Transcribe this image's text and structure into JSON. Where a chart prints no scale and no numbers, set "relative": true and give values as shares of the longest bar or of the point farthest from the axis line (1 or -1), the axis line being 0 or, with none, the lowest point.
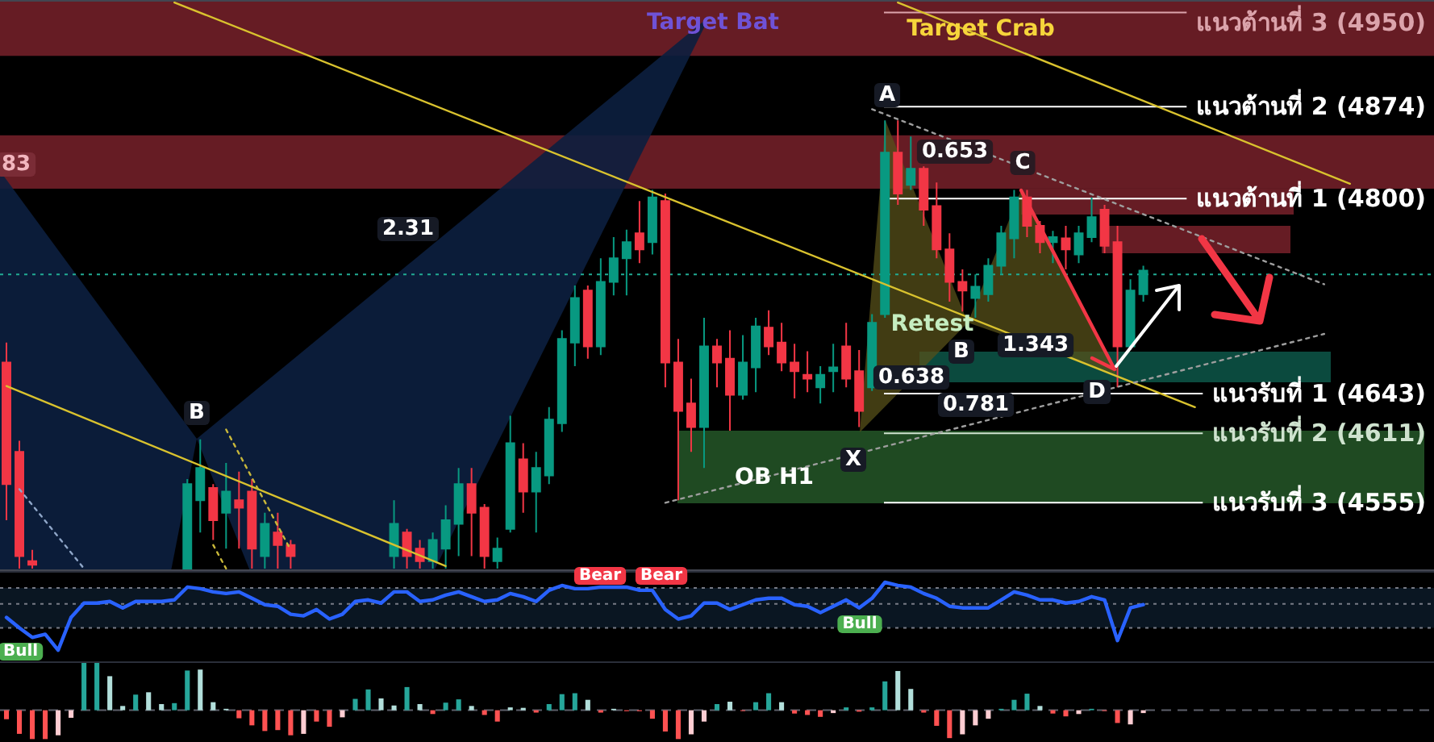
{
  "chart_data": [
    {
      "type": "candlestick",
      "categories": [
        null,
        null,
        null,
        null,
        null,
        null,
        null,
        null,
        null,
        null,
        null,
        null,
        null,
        null,
        null,
        null,
        null,
        null,
        null,
        null,
        null,
        null,
        null,
        null,
        null,
        null,
        null,
        null,
        null,
        null,
        null,
        null,
        null,
        null,
        null,
        null,
        null,
        null,
        null,
        null,
        null,
        null,
        null,
        null,
        null,
        null,
        null,
        null,
        null,
        null,
        null,
        null,
        null,
        null,
        null,
        null,
        null,
        null,
        null,
        null,
        null,
        null,
        null,
        null,
        null,
        null,
        null,
        null,
        null,
        null,
        null,
        null,
        null,
        null,
        null,
        null,
        null,
        null,
        null,
        null,
        null,
        null,
        null,
        null,
        null,
        null,
        null,
        null,
        null,
        null,
        null,
        null,
        null,
        null,
        null,
        null,
        null,
        null,
        null,
        null,
        null,
        null,
        null,
        null,
        null,
        null,
        null,
        null,
        null,
        null,
        null
      ],
      "ohlc": [
        [
          4668,
          4684,
          4541,
          4570
        ],
        [
          4596,
          4605,
          4502,
          4512
        ],
        [
          4508,
          4517,
          4502,
          4505
        ],
        null,
        null,
        null,
        null,
        null,
        null,
        null,
        null,
        null,
        null,
        null,
        [
          4502,
          4574,
          4502,
          4570
        ],
        [
          4557,
          4606,
          4531,
          4583
        ],
        [
          4567,
          4570,
          4525,
          4541
        ],
        [
          4547,
          4587,
          4518,
          4564
        ],
        [
          4557,
          4580,
          4518,
          4551
        ],
        [
          4564,
          4574,
          4502,
          4518
        ],
        [
          4512,
          4547,
          4502,
          4538
        ],
        [
          4531,
          4547,
          4502,
          4521
        ],
        [
          4521,
          4525,
          4502,
          4512
        ],
        null,
        null,
        null,
        null,
        null,
        null,
        null,
        [
          4512,
          4557,
          4502,
          4538
        ],
        [
          4531,
          4534,
          4502,
          4512
        ],
        [
          4518,
          4525,
          4502,
          4508
        ],
        [
          4508,
          4531,
          4502,
          4525
        ],
        [
          4518,
          4553,
          4502,
          4541
        ],
        [
          4538,
          4583,
          4512,
          4570
        ],
        [
          4570,
          4583,
          4512,
          4547
        ],
        [
          4551,
          4554,
          4502,
          4512
        ],
        [
          4508,
          4527,
          4502,
          4518
        ],
        [
          4534,
          4625,
          4531,
          4603
        ],
        [
          4590,
          4603,
          4547,
          4564
        ],
        [
          4564,
          4596,
          4531,
          4583
        ],
        [
          4577,
          4632,
          4570,
          4622
        ],
        [
          4619,
          4694,
          4612,
          4687
        ],
        [
          4684,
          4730,
          4665,
          4720
        ],
        [
          4726,
          4730,
          4671,
          4681
        ],
        [
          4681,
          4752,
          4674,
          4733
        ],
        [
          4733,
          4769,
          4722,
          4752
        ],
        [
          4752,
          4775,
          4722,
          4765
        ],
        [
          4772,
          4798,
          4748,
          4759
        ],
        [
          4765,
          4807,
          4755,
          4801
        ],
        [
          4798,
          4804,
          4648,
          4668
        ],
        [
          4668,
          4687,
          4557,
          4629
        ],
        [
          4635,
          4655,
          4596,
          4616
        ],
        [
          4616,
          4704,
          4583,
          4681
        ],
        [
          4681,
          4687,
          4648,
          4668
        ],
        [
          4671,
          4694,
          4613,
          4642
        ],
        [
          4642,
          4690,
          4638,
          4668
        ],
        [
          4664,
          4704,
          4644,
          4697
        ],
        [
          4696,
          4710,
          4674,
          4681
        ],
        [
          4684,
          4700,
          4661,
          4668
        ],
        [
          4668,
          4683,
          4639,
          4661
        ],
        [
          4658,
          4677,
          4644,
          4655
        ],
        [
          4648,
          4665,
          4635,
          4658
        ],
        [
          4661,
          4683,
          4644,
          4664
        ],
        [
          4681,
          4700,
          4648,
          4655
        ],
        [
          4661,
          4678,
          4616,
          4629
        ],
        [
          4648,
          4707,
          4645,
          4700
        ],
        [
          4707,
          4863,
          4704,
          4837
        ],
        [
          4837,
          4863,
          4795,
          4804
        ],
        [
          4811,
          4850,
          4807,
          4824
        ],
        [
          4824,
          4826,
          4778,
          4791
        ],
        [
          4794,
          4813,
          4752,
          4759
        ],
        [
          4759,
          4772,
          4717,
          4733
        ],
        [
          4733,
          4743,
          4709,
          4726
        ],
        [
          4720,
          4739,
          4704,
          4729
        ],
        [
          4723,
          4752,
          4717,
          4746
        ],
        [
          4746,
          4778,
          4739,
          4772
        ],
        [
          4768,
          4807,
          4752,
          4801
        ],
        [
          4801,
          4807,
          4769,
          4778
        ],
        [
          4778,
          4782,
          4756,
          4765
        ],
        [
          4765,
          4774,
          4748,
          4769
        ],
        [
          4768,
          4778,
          4743,
          4759
        ],
        [
          4755,
          4778,
          4748,
          4772
        ],
        [
          4769,
          4801,
          4765,
          4785
        ],
        [
          4791,
          4795,
          4756,
          4762
        ],
        [
          4765,
          4778,
          4648,
          4681
        ],
        [
          4681,
          4735,
          4678,
          4726
        ],
        [
          4723,
          4746,
          4717,
          4742
        ],
        null,
        null,
        null,
        null,
        null,
        null,
        null,
        null,
        null,
        null,
        null,
        null,
        null,
        null,
        null,
        null,
        null,
        null,
        null,
        null,
        null,
        null
      ],
      "colors": [
        "#f23645",
        "#f23645",
        "#f23645",
        null,
        null,
        null,
        null,
        null,
        null,
        null,
        null,
        null,
        null,
        null,
        "#089981",
        "#089981",
        "#f23645",
        "#089981",
        "#f23645",
        "#f23645",
        "#089981",
        "#f23645",
        "#f23645",
        null,
        null,
        null,
        null,
        null,
        null,
        null,
        "#089981",
        "#f23645",
        "#f23645",
        "#089981",
        "#089981",
        "#089981",
        "#f23645",
        "#f23645",
        "#089981",
        "#089981",
        "#f23645",
        "#089981",
        "#089981",
        "#089981",
        "#089981",
        "#f23645",
        "#089981",
        "#089981",
        "#089981",
        "#f23645",
        "#089981",
        "#f23645",
        "#f23645",
        "#f23645",
        "#089981",
        "#f23645",
        "#f23645",
        "#089981",
        "#089981",
        "#f23645",
        "#f23645",
        "#f23645",
        "#f23645",
        "#089981",
        "#089981",
        "#f23645",
        "#f23645",
        "#089981",
        "#089981",
        "#f23645",
        "#089981",
        "#f23645",
        "#f23645",
        "#f23645",
        "#f23645",
        "#089981",
        "#089981",
        "#089981",
        "#089981",
        "#f23645",
        "#f23645",
        "#089981",
        "#f23645",
        "#089981",
        "#089981",
        "#f23645",
        "#f23645",
        "#089981",
        "#089981",
        null,
        null,
        null,
        null,
        null,
        null,
        null,
        null,
        null,
        null,
        null,
        null,
        null,
        null,
        null,
        null,
        null,
        null,
        null,
        null,
        null,
        null
      ],
      "ylim": [
        4500,
        4960
      ],
      "series": [
        {
          "type": "line",
          "color": "#d9c22e",
          "values": [
            null,
            null,
            null,
            null,
            null,
            null,
            null,
            null,
            null,
            null,
            null,
            null,
            null,
            4958,
            null,
            null,
            null,
            null,
            null,
            null,
            null,
            null,
            null,
            null,
            null,
            null,
            null,
            null,
            null,
            null,
            null,
            null,
            null,
            null,
            null,
            null,
            null,
            null,
            null,
            null,
            null,
            null,
            null,
            null,
            null,
            null,
            null,
            null,
            null,
            null,
            null,
            null,
            null,
            null,
            null,
            null,
            null,
            null,
            null,
            null,
            null,
            null,
            null,
            null,
            null,
            null,
            null,
            null,
            null,
            null,
            null,
            null,
            null,
            null,
            null,
            null,
            null,
            null,
            null,
            null,
            null,
            null,
            null,
            null,
            null,
            null,
            null,
            null,
            null,
            null,
            null,
            null,
            4632,
            null,
            null,
            null,
            null,
            null,
            null,
            null,
            null,
            null,
            null,
            null,
            null,
            null,
            null,
            null,
            null,
            null,
            null
          ]
        },
        {
          "type": "line",
          "color": "#d9c22e",
          "values": [
            4649,
            null,
            null,
            null,
            null,
            null,
            null,
            null,
            null,
            null,
            null,
            null,
            null,
            null,
            null,
            null,
            null,
            null,
            null,
            null,
            null,
            null,
            null,
            null,
            null,
            null,
            null,
            null,
            null,
            null,
            null,
            null,
            null,
            null,
            4504,
            null,
            null,
            null,
            null,
            null,
            null,
            null,
            null,
            null,
            null,
            null,
            null,
            null,
            null,
            null,
            null,
            null,
            null,
            null,
            null,
            null,
            null,
            null,
            null,
            null,
            null,
            null,
            null,
            null,
            null,
            null,
            null,
            null,
            null,
            null,
            null,
            null,
            null,
            null,
            null,
            null,
            null,
            null,
            null,
            null,
            null,
            null,
            null,
            null,
            null,
            null,
            null,
            null,
            null,
            null,
            null,
            null,
            null,
            null,
            null,
            null,
            null,
            null,
            null,
            null,
            null,
            null,
            null,
            null,
            null,
            null,
            null,
            null,
            null,
            null,
            null
          ]
        },
        {
          "type": "line",
          "color": "#d9c22e",
          "values": [
            null,
            null,
            null,
            null,
            null,
            null,
            null,
            null,
            null,
            null,
            null,
            null,
            null,
            null,
            null,
            null,
            null,
            null,
            null,
            null,
            null,
            null,
            null,
            null,
            null,
            null,
            null,
            null,
            null,
            null,
            null,
            null,
            null,
            null,
            null,
            null,
            null,
            null,
            null,
            null,
            null,
            null,
            null,
            null,
            null,
            null,
            null,
            null,
            null,
            null,
            null,
            null,
            null,
            null,
            null,
            null,
            null,
            null,
            null,
            null,
            null,
            null,
            null,
            null,
            null,
            null,
            null,
            null,
            null,
            4958,
            null,
            null,
            null,
            null,
            null,
            null,
            null,
            null,
            null,
            null,
            null,
            null,
            null,
            null,
            null,
            null,
            null,
            null,
            null,
            null,
            null,
            null,
            null,
            null,
            null,
            null,
            null,
            null,
            null,
            null,
            null,
            null,
            null,
            null,
            4812,
            null,
            null,
            null,
            null,
            null,
            null
          ]
        },
        {
          "type": "line",
          "color": "#9e9e9e",
          "line_style": "dotted",
          "values": [
            null,
            null,
            null,
            null,
            null,
            null,
            null,
            null,
            null,
            null,
            null,
            null,
            null,
            null,
            null,
            null,
            null,
            null,
            null,
            null,
            null,
            null,
            null,
            null,
            null,
            null,
            null,
            null,
            null,
            null,
            null,
            null,
            null,
            null,
            null,
            null,
            null,
            null,
            null,
            null,
            null,
            null,
            null,
            null,
            null,
            null,
            null,
            null,
            null,
            null,
            null,
            null,
            null,
            null,
            null,
            null,
            null,
            null,
            null,
            null,
            null,
            null,
            null,
            null,
            null,
            null,
            null,
            4872,
            null,
            null,
            null,
            null,
            null,
            null,
            null,
            null,
            null,
            null,
            null,
            null,
            null,
            null,
            null,
            null,
            null,
            null,
            null,
            null,
            null,
            null,
            null,
            null,
            null,
            null,
            null,
            null,
            null,
            null,
            null,
            null,
            null,
            null,
            4731,
            null,
            null,
            null,
            null,
            null,
            null,
            null,
            null
          ]
        },
        {
          "type": "line",
          "color": "#9e9e9e",
          "line_style": "dotted",
          "values": [
            null,
            null,
            null,
            null,
            null,
            null,
            null,
            null,
            null,
            null,
            null,
            null,
            null,
            null,
            null,
            null,
            null,
            null,
            null,
            null,
            null,
            null,
            null,
            null,
            null,
            null,
            null,
            null,
            null,
            null,
            null,
            null,
            null,
            null,
            null,
            null,
            null,
            null,
            null,
            null,
            null,
            null,
            null,
            null,
            null,
            null,
            null,
            null,
            null,
            null,
            null,
            4555,
            null,
            null,
            null,
            null,
            null,
            null,
            null,
            null,
            null,
            null,
            null,
            null,
            null,
            null,
            null,
            null,
            null,
            null,
            null,
            null,
            null,
            null,
            null,
            null,
            null,
            null,
            null,
            null,
            null,
            null,
            null,
            null,
            null,
            null,
            null,
            null,
            null,
            null,
            null,
            null,
            null,
            null,
            null,
            null,
            null,
            null,
            null,
            null,
            null,
            null,
            4691,
            null,
            null,
            null,
            null,
            null,
            null,
            null,
            null
          ]
        },
        {
          "type": "line",
          "color": "#c9b83a",
          "line_style": "dotted",
          "values": [
            null,
            null,
            null,
            null,
            null,
            null,
            null,
            null,
            null,
            null,
            null,
            null,
            null,
            null,
            null,
            null,
            null,
            4614,
            null,
            null,
            null,
            null,
            4517,
            null,
            null,
            null,
            null,
            null,
            null,
            null,
            null,
            null,
            null,
            null,
            null,
            null,
            null,
            null,
            null,
            null,
            null,
            null,
            null,
            null,
            null,
            null,
            null,
            null,
            null,
            null,
            null,
            null,
            null,
            null,
            null,
            null,
            null,
            null,
            null,
            null,
            null,
            null,
            null,
            null,
            null,
            null,
            null,
            null,
            null,
            null,
            null,
            null,
            null,
            null,
            null,
            null,
            null,
            null,
            null,
            null,
            null,
            null,
            null,
            null,
            null,
            null,
            null,
            null,
            null,
            null,
            null,
            null,
            null,
            null,
            null,
            null,
            null,
            null,
            null,
            null,
            null,
            null,
            null,
            null,
            null,
            null,
            null,
            null,
            null,
            null,
            null
          ]
        },
        {
          "type": "line",
          "color": "#c9b83a",
          "line_style": "dotted",
          "values": [
            null,
            null,
            null,
            null,
            null,
            null,
            null,
            null,
            null,
            null,
            null,
            null,
            null,
            null,
            null,
            null,
            4521,
            4502,
            null,
            null,
            null,
            null,
            null,
            null,
            null,
            null,
            null,
            null,
            null,
            null,
            null,
            null,
            null,
            null,
            null,
            null,
            null,
            null,
            null,
            null,
            null,
            null,
            null,
            null,
            null,
            null,
            null,
            null,
            null,
            null,
            null,
            null,
            null,
            null,
            null,
            null,
            null,
            null,
            null,
            null,
            null,
            null,
            null,
            null,
            null,
            null,
            null,
            null,
            null,
            null,
            null,
            null,
            null,
            null,
            null,
            null,
            null,
            null,
            null,
            null,
            null,
            null,
            null,
            null,
            null,
            null,
            null,
            null,
            null,
            null,
            null,
            null,
            null,
            null,
            null,
            null,
            null,
            null,
            null,
            null,
            null,
            null,
            null,
            null,
            null,
            null,
            null,
            null,
            null,
            null,
            null
          ]
        },
        {
          "type": "line",
          "color": "#8fa6c8",
          "line_style": "dotted",
          "values": [
            null,
            4566,
            null,
            null,
            null,
            null,
            4502,
            null,
            null,
            null,
            null,
            null,
            null,
            null,
            null,
            null,
            null,
            null,
            null,
            null,
            null,
            null,
            null,
            null,
            null,
            null,
            null,
            null,
            null,
            null,
            null,
            null,
            null,
            null,
            null,
            null,
            null,
            null,
            null,
            null,
            null,
            null,
            null,
            null,
            null,
            null,
            null,
            null,
            null,
            null,
            null,
            null,
            null,
            null,
            null,
            null,
            null,
            null,
            null,
            null,
            null,
            null,
            null,
            null,
            null,
            null,
            null,
            null,
            null,
            null,
            null,
            null,
            null,
            null,
            null,
            null,
            null,
            null,
            null,
            null,
            null,
            null,
            null,
            null,
            null,
            null,
            null,
            null,
            null,
            null,
            null,
            null,
            null,
            null,
            null,
            null,
            null,
            null,
            null,
            null,
            null,
            null,
            null,
            null,
            null,
            null,
            null,
            null,
            null,
            null,
            null
          ]
        }
      ],
      "ref_lines": [
        {
          "axis": "y",
          "value": 4950,
          "label": "แนวต้านที่ 3 (4950)",
          "color": "#dba3ab"
        },
        {
          "axis": "y",
          "value": 4874,
          "label": "แนวต้านที่ 2 (4874)",
          "color": "#ffffff"
        },
        {
          "axis": "y",
          "value": 4800,
          "label": "แนวต้านที่ 1 (4800)",
          "color": "#ffffff"
        },
        {
          "axis": "y",
          "value": 4739,
          "color": "#22ab94",
          "line_style": "dotted"
        },
        {
          "axis": "y",
          "value": 4643,
          "label": "แนวรับที่ 1 (4643)",
          "color": "#ffffff"
        },
        {
          "axis": "y",
          "value": 4611,
          "label": "แนวรับที่ 2 (4611)",
          "color": "#cfe3cf"
        },
        {
          "axis": "y",
          "value": 4555,
          "label": "แนวรับที่ 3 (4555)",
          "color": "#ffffff"
        }
      ],
      "bands": [
        {
          "axis": "y",
          "from": 4915,
          "to": 4960,
          "color": "#661c24"
        },
        {
          "axis": "y",
          "from": 4808,
          "to": 4851,
          "color": "#661c24"
        }
      ],
      "annotations": [
        "Target Bat",
        "Target Crab",
        "2.31",
        "B",
        "A",
        "0.653",
        "C",
        "Retest",
        "B",
        "1.343",
        "0.638",
        "0.781",
        "D",
        "X",
        "OB H1",
        "83"
      ]
    },
    {
      "type": "line",
      "relative": true,
      "categories": [
        null,
        null,
        null,
        null,
        null,
        null,
        null,
        null,
        null,
        null,
        null,
        null,
        null,
        null,
        null,
        null,
        null,
        null,
        null,
        null,
        null,
        null,
        null,
        null,
        null,
        null,
        null,
        null,
        null,
        null,
        null,
        null,
        null,
        null,
        null,
        null,
        null,
        null,
        null,
        null,
        null,
        null,
        null,
        null,
        null,
        null,
        null,
        null,
        null,
        null,
        null,
        null,
        null,
        null,
        null,
        null,
        null,
        null,
        null,
        null,
        null,
        null,
        null,
        null,
        null,
        null,
        null,
        null,
        null,
        null,
        null,
        null,
        null,
        null,
        null,
        null,
        null,
        null,
        null,
        null,
        null,
        null,
        null,
        null,
        null,
        null,
        null,
        null,
        null,
        null,
        null,
        null,
        null,
        null,
        null,
        null,
        null,
        null,
        null,
        null,
        null,
        null,
        null,
        null,
        null,
        null,
        null,
        null,
        null,
        null,
        null
      ],
      "series": [
        {
          "color": "#2962ff",
          "values": [
            0.56,
            0.43,
            0.31,
            0.35,
            0.15,
            0.56,
            0.74,
            0.74,
            0.76,
            0.68,
            0.76,
            0.76,
            0.76,
            0.78,
            0.94,
            0.92,
            0.88,
            0.86,
            0.88,
            0.8,
            0.72,
            0.7,
            0.6,
            0.58,
            0.66,
            0.54,
            0.6,
            0.76,
            0.78,
            0.74,
            0.88,
            0.88,
            0.76,
            0.78,
            0.84,
            0.88,
            0.82,
            0.76,
            0.78,
            0.86,
            0.82,
            0.76,
            0.9,
            0.96,
            0.92,
            0.92,
            0.94,
            0.94,
            0.94,
            0.9,
            0.9,
            0.66,
            0.54,
            0.58,
            0.74,
            0.74,
            0.66,
            0.72,
            0.78,
            0.8,
            0.8,
            0.72,
            0.7,
            0.62,
            0.7,
            0.78,
            0.68,
            0.8,
            1,
            0.96,
            0.94,
            0.86,
            0.8,
            0.7,
            0.68,
            0.68,
            0.68,
            0.78,
            0.88,
            0.84,
            0.78,
            0.78,
            0.74,
            0.76,
            0.82,
            0.78,
            0.27,
            0.68,
            0.72,
            null,
            null,
            null,
            null,
            null,
            null,
            null,
            null,
            null,
            null,
            null,
            null,
            null,
            null,
            null,
            null,
            null,
            null,
            null,
            null,
            null,
            null
          ]
        }
      ],
      "ref_lines": [
        {
          "axis": "y",
          "value": 0.93,
          "color": "#787b86",
          "line_style": "dotted"
        },
        {
          "axis": "y",
          "value": 0.73,
          "color": "#787b86",
          "line_style": "dotted"
        },
        {
          "axis": "y",
          "value": 0.43,
          "color": "#787b86",
          "line_style": "dotted"
        }
      ],
      "bands": [
        {
          "axis": "y",
          "from": 0.43,
          "to": 0.93,
          "color": "#0a1622"
        }
      ],
      "annotations": [
        "Bull",
        "Bear",
        "Bear",
        "Bull"
      ]
    },
    {
      "type": "bar",
      "relative": true,
      "categories": [
        null,
        null,
        null,
        null,
        null,
        null,
        null,
        null,
        null,
        null,
        null,
        null,
        null,
        null,
        null,
        null,
        null,
        null,
        null,
        null,
        null,
        null,
        null,
        null,
        null,
        null,
        null,
        null,
        null,
        null,
        null,
        null,
        null,
        null,
        null,
        null,
        null,
        null,
        null,
        null,
        null,
        null,
        null,
        null,
        null,
        null,
        null,
        null,
        null,
        null,
        null,
        null,
        null,
        null,
        null,
        null,
        null,
        null,
        null,
        null,
        null,
        null,
        null,
        null,
        null,
        null,
        null,
        null,
        null,
        null,
        null,
        null,
        null,
        null,
        null,
        null,
        null,
        null,
        null,
        null,
        null,
        null,
        null,
        null,
        null,
        null,
        null,
        null,
        null,
        null,
        null,
        null,
        null,
        null,
        null,
        null,
        null,
        null,
        null,
        null,
        null,
        null,
        null,
        null,
        null,
        null,
        null,
        null,
        null,
        null,
        null
      ],
      "values": [
        -0.19,
        -0.5,
        -0.61,
        -0.61,
        -0.53,
        -0.16,
        1,
        1,
        0.72,
        0.09,
        0.33,
        0.38,
        0.13,
        0.15,
        0.84,
        0.86,
        0.17,
        0.03,
        -0.17,
        -0.32,
        -0.44,
        -0.42,
        -0.53,
        -0.5,
        -0.24,
        -0.35,
        -0.15,
        0.24,
        0.44,
        0.25,
        0.1,
        0.49,
        0.13,
        -0.08,
        0.16,
        0.23,
        0.09,
        -0.1,
        -0.24,
        0.06,
        0.05,
        -0.05,
        0.13,
        0.34,
        0.36,
        0.22,
        -0.05,
        0.03,
        -0.02,
        -0.02,
        -0.18,
        -0.45,
        -0.61,
        -0.51,
        -0.24,
        0.13,
        0.18,
        -0.01,
        0.17,
        0.36,
        0.17,
        -0.07,
        -0.1,
        -0.14,
        -0.06,
        0.06,
        -0.03,
        0.06,
        0.61,
        0.83,
        0.45,
        -0.05,
        -0.33,
        -0.59,
        -0.51,
        -0.32,
        -0.18,
        0.03,
        0.22,
        0.35,
        0.09,
        -0.07,
        -0.13,
        -0.08,
        0.03,
        -0.01,
        -0.27,
        -0.3,
        -0.06,
        null,
        null,
        null,
        null,
        null,
        null,
        null,
        null,
        null,
        null,
        null,
        null,
        null,
        null,
        null,
        null,
        null,
        null,
        null,
        null,
        null,
        null
      ],
      "colors": [
        "#ff5252",
        "#ff5252",
        "#ff5252",
        "#ff5252",
        "#ffcdd2",
        "#ffcdd2",
        "#26a69a",
        "#26a69a",
        "#b2dfdb",
        "#b2dfdb",
        "#26a69a",
        "#b2dfdb",
        "#b2dfdb",
        "#26a69a",
        "#26a69a",
        "#b2dfdb",
        "#b2dfdb",
        "#b2dfdb",
        "#ff5252",
        "#ff5252",
        "#ff5252",
        "#ff5252",
        "#ff5252",
        "#ffcdd2",
        "#ff5252",
        "#ff5252",
        "#ffcdd2",
        "#26a69a",
        "#26a69a",
        "#b2dfdb",
        "#b2dfdb",
        "#26a69a",
        "#b2dfdb",
        "#ff5252",
        "#26a69a",
        "#26a69a",
        "#b2dfdb",
        "#ff5252",
        "#ff5252",
        "#b2dfdb",
        "#b2dfdb",
        "#ff5252",
        "#26a69a",
        "#26a69a",
        "#26a69a",
        "#b2dfdb",
        "#ff5252",
        "#b2dfdb",
        "#ff5252",
        "#ff5252",
        "#ff5252",
        "#ff5252",
        "#ff5252",
        "#ffcdd2",
        "#ffcdd2",
        "#26a69a",
        "#b2dfdb",
        "#ff5252",
        "#26a69a",
        "#26a69a",
        "#b2dfdb",
        "#ff5252",
        "#ff5252",
        "#ff5252",
        "#ffcdd2",
        "#26a69a",
        "#ff5252",
        "#26a69a",
        "#26a69a",
        "#b2dfdb",
        "#b2dfdb",
        "#ff5252",
        "#ff5252",
        "#ff5252",
        "#ffcdd2",
        "#ffcdd2",
        "#ffcdd2",
        "#26a69a",
        "#26a69a",
        "#26a69a",
        "#b2dfdb",
        "#ff5252",
        "#ff5252",
        "#ffcdd2",
        "#26a69a",
        "#ff5252",
        "#ff5252",
        "#ffcdd2",
        "#ffcdd2",
        null,
        null,
        null,
        null,
        null,
        null,
        null,
        null,
        null,
        null,
        null,
        null,
        null,
        null,
        null,
        null,
        null,
        null,
        null,
        null,
        null,
        null
      ],
      "ref_lines": [
        {
          "axis": "y",
          "value": 0,
          "color": "#5d606b",
          "line_style": "dashed"
        }
      ]
    }
  ]
}
